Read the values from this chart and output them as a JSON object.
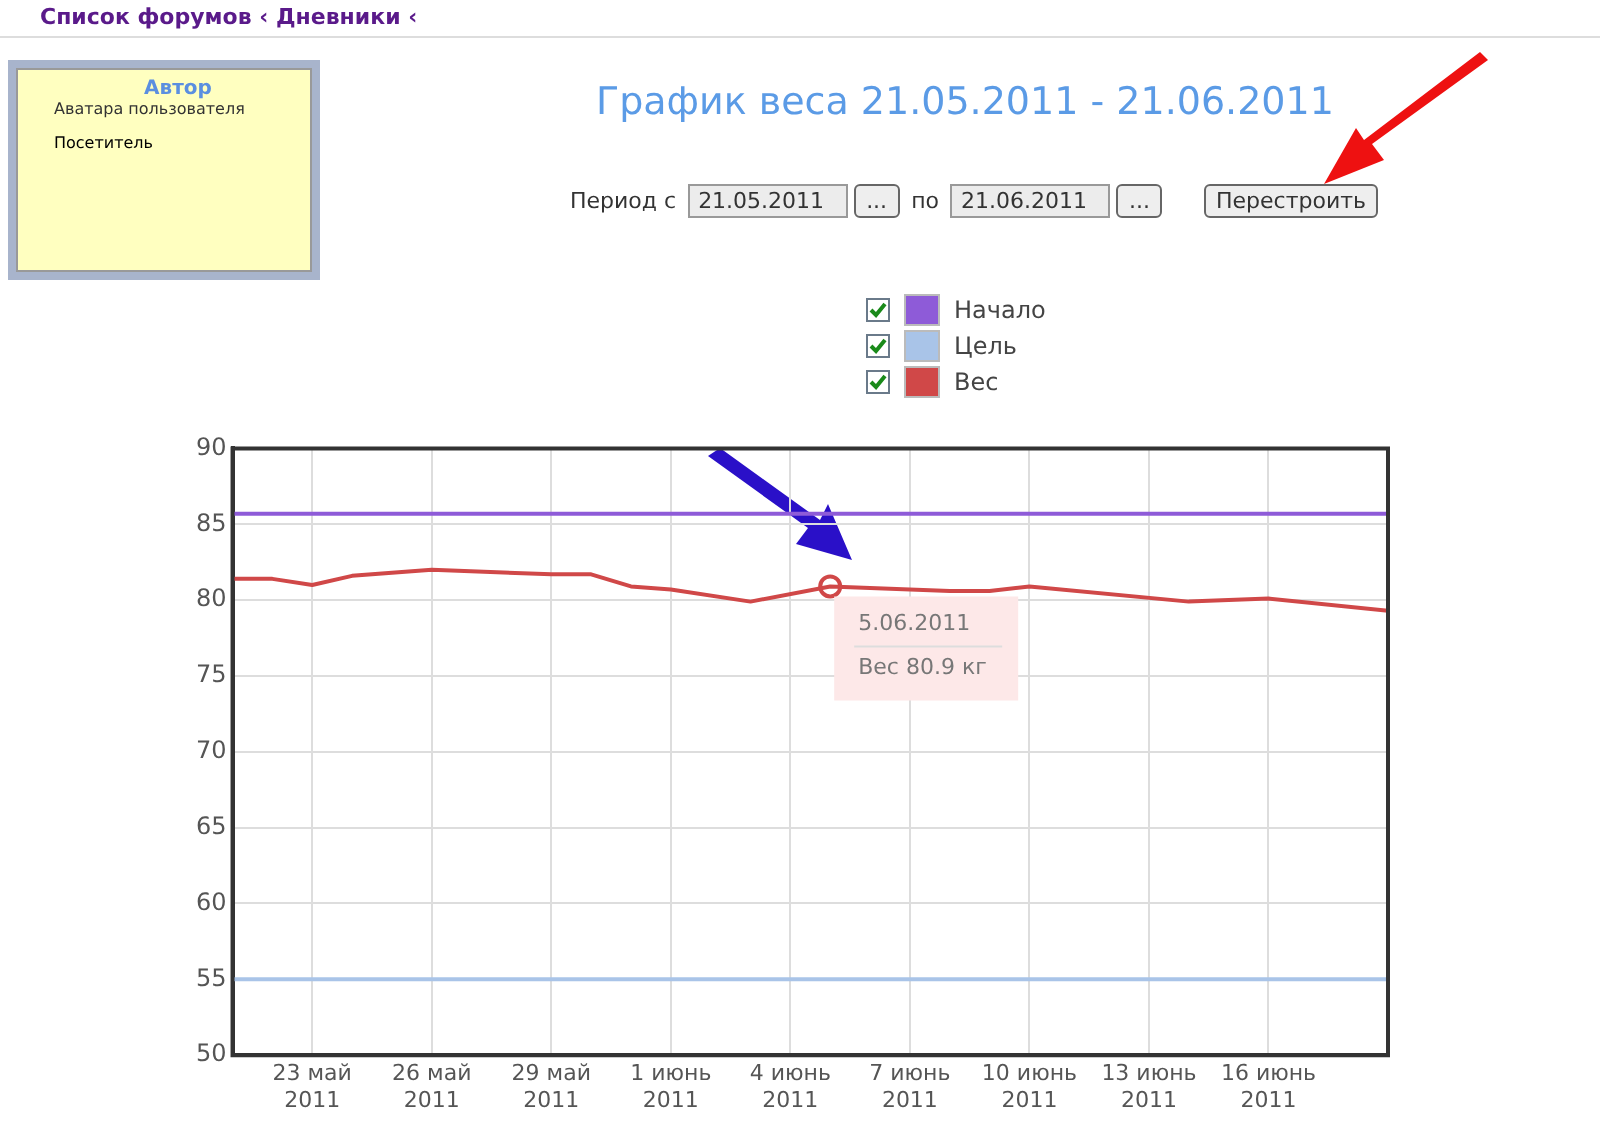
{
  "chart_data": {
    "type": "line",
    "title": "График веса 21.05.2011 - 21.06.2011",
    "series": [
      {
        "name": "Начало",
        "color": "#8e5bd8",
        "x": [
          "2011-05-21",
          "2011-06-19"
        ],
        "values": [
          85.7,
          85.7
        ]
      },
      {
        "name": "Цель",
        "color": "#a9c4e8",
        "x": [
          "2011-05-21",
          "2011-06-19"
        ],
        "values": [
          55,
          55
        ]
      },
      {
        "name": "Вес",
        "color": "#d04848",
        "x": [
          "2011-05-21",
          "2011-05-22",
          "2011-05-23",
          "2011-05-24",
          "2011-05-26",
          "2011-05-29",
          "2011-05-30",
          "2011-05-31",
          "2011-06-01",
          "2011-06-03",
          "2011-06-05",
          "2011-06-08",
          "2011-06-09",
          "2011-06-10",
          "2011-06-14",
          "2011-06-16",
          "2011-06-19"
        ],
        "values": [
          81.4,
          81.4,
          81.0,
          81.6,
          82.0,
          81.7,
          81.7,
          80.9,
          80.7,
          79.9,
          80.9,
          80.6,
          80.6,
          80.9,
          79.9,
          80.1,
          79.3
        ]
      }
    ],
    "xlim": [
      "2011-05-21",
      "2011-06-19"
    ],
    "xticks": [
      {
        "value": "2011-05-23",
        "label": "23 май 2011"
      },
      {
        "value": "2011-05-26",
        "label": "26 май 2011"
      },
      {
        "value": "2011-05-29",
        "label": "29 май 2011"
      },
      {
        "value": "2011-06-01",
        "label": "1 июнь 2011"
      },
      {
        "value": "2011-06-04",
        "label": "4 июнь 2011"
      },
      {
        "value": "2011-06-07",
        "label": "7 июнь 2011"
      },
      {
        "value": "2011-06-10",
        "label": "10 июнь 2011"
      },
      {
        "value": "2011-06-13",
        "label": "13 июнь 2011"
      },
      {
        "value": "2011-06-16",
        "label": "16 июнь 2011"
      }
    ],
    "ylim": [
      50,
      90
    ],
    "yticks": [
      50,
      55,
      60,
      65,
      70,
      75,
      80,
      85,
      90
    ],
    "grid": true,
    "legend": "top",
    "marker": "none",
    "line_style": "solid",
    "annotations": [
      "Список форумов ‹ Дневники ‹",
      "Автор",
      "Аватара пользователя",
      "Посетитель",
      "Период с",
      "21.05.2011",
      "...",
      "по",
      "21.06.2011",
      "...",
      "Перестроить",
      {
        "text": "5.06.2011",
        "x": "2011-06-05",
        "y": 80.9
      },
      "Вес 80.9 кг"
    ]
  }
}
